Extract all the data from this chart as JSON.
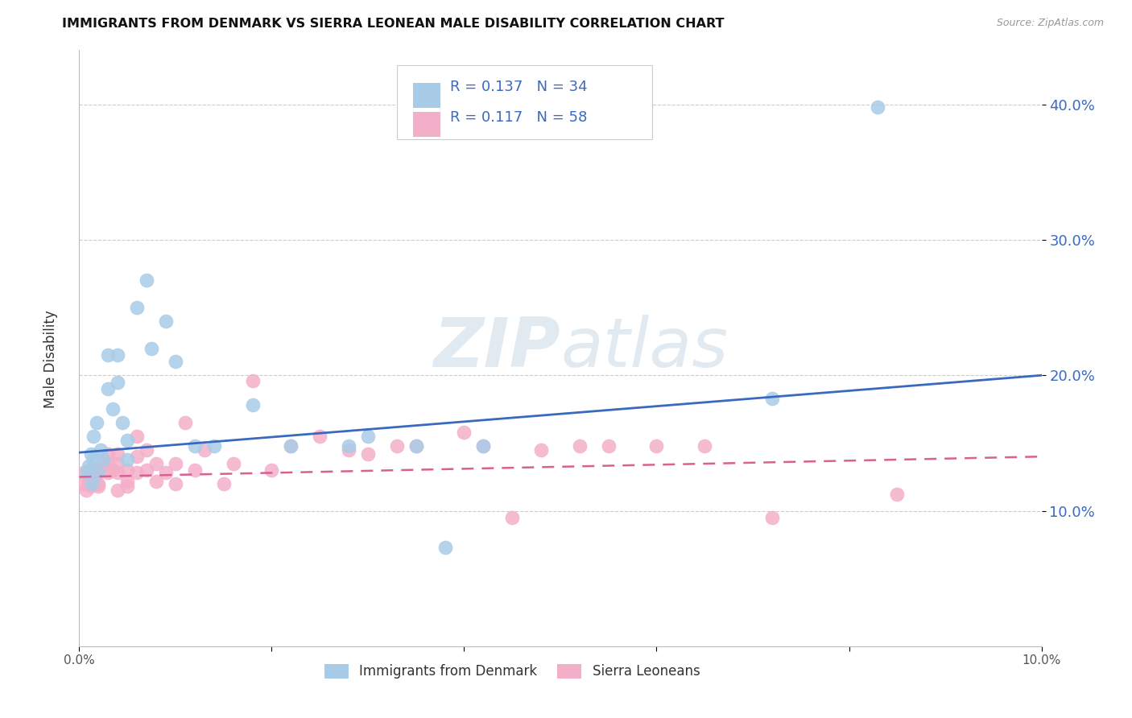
{
  "title": "IMMIGRANTS FROM DENMARK VS SIERRA LEONEAN MALE DISABILITY CORRELATION CHART",
  "source": "Source: ZipAtlas.com",
  "ylabel": "Male Disability",
  "xlim": [
    0.0,
    0.1
  ],
  "ylim": [
    0.0,
    0.44
  ],
  "yticks": [
    0.1,
    0.2,
    0.3,
    0.4
  ],
  "ytick_labels": [
    "10.0%",
    "20.0%",
    "30.0%",
    "40.0%"
  ],
  "legend_label1": "Immigrants from Denmark",
  "legend_label2": "Sierra Leoneans",
  "r1": "0.137",
  "n1": "34",
  "r2": "0.117",
  "n2": "58",
  "blue_color": "#a8cce8",
  "pink_color": "#f4afc8",
  "line_blue": "#3a6abf",
  "line_pink": "#d96090",
  "watermark_color": "#d0dce8",
  "blue_line_y0": 0.143,
  "blue_line_y1": 0.2,
  "pink_line_y0": 0.125,
  "pink_line_y1": 0.14,
  "denmark_x": [
    0.0008,
    0.001,
    0.0012,
    0.0013,
    0.0015,
    0.0015,
    0.0018,
    0.002,
    0.0022,
    0.0025,
    0.003,
    0.003,
    0.0035,
    0.004,
    0.004,
    0.0045,
    0.005,
    0.005,
    0.006,
    0.007,
    0.0075,
    0.009,
    0.01,
    0.012,
    0.014,
    0.018,
    0.022,
    0.028,
    0.03,
    0.035,
    0.038,
    0.042,
    0.072,
    0.083
  ],
  "denmark_y": [
    0.128,
    0.133,
    0.142,
    0.12,
    0.138,
    0.155,
    0.165,
    0.128,
    0.145,
    0.138,
    0.19,
    0.215,
    0.175,
    0.215,
    0.195,
    0.165,
    0.138,
    0.152,
    0.25,
    0.27,
    0.22,
    0.24,
    0.21,
    0.148,
    0.148,
    0.178,
    0.148,
    0.148,
    0.155,
    0.148,
    0.073,
    0.148,
    0.183,
    0.398
  ],
  "sierra_x": [
    0.0003,
    0.0005,
    0.0007,
    0.001,
    0.001,
    0.0012,
    0.0013,
    0.0015,
    0.0015,
    0.0018,
    0.002,
    0.002,
    0.002,
    0.0025,
    0.003,
    0.003,
    0.003,
    0.0035,
    0.004,
    0.004,
    0.004,
    0.004,
    0.005,
    0.005,
    0.005,
    0.006,
    0.006,
    0.006,
    0.007,
    0.007,
    0.008,
    0.008,
    0.009,
    0.01,
    0.01,
    0.011,
    0.012,
    0.013,
    0.015,
    0.016,
    0.018,
    0.02,
    0.022,
    0.025,
    0.028,
    0.03,
    0.033,
    0.035,
    0.04,
    0.042,
    0.045,
    0.048,
    0.052,
    0.055,
    0.06,
    0.065,
    0.072,
    0.085
  ],
  "sierra_y": [
    0.12,
    0.128,
    0.115,
    0.122,
    0.13,
    0.118,
    0.125,
    0.132,
    0.122,
    0.128,
    0.12,
    0.128,
    0.118,
    0.135,
    0.128,
    0.135,
    0.142,
    0.13,
    0.128,
    0.135,
    0.142,
    0.115,
    0.122,
    0.13,
    0.118,
    0.128,
    0.14,
    0.155,
    0.13,
    0.145,
    0.122,
    0.135,
    0.128,
    0.135,
    0.12,
    0.165,
    0.13,
    0.145,
    0.12,
    0.135,
    0.196,
    0.13,
    0.148,
    0.155,
    0.145,
    0.142,
    0.148,
    0.148,
    0.158,
    0.148,
    0.095,
    0.145,
    0.148,
    0.148,
    0.148,
    0.148,
    0.095,
    0.112
  ]
}
